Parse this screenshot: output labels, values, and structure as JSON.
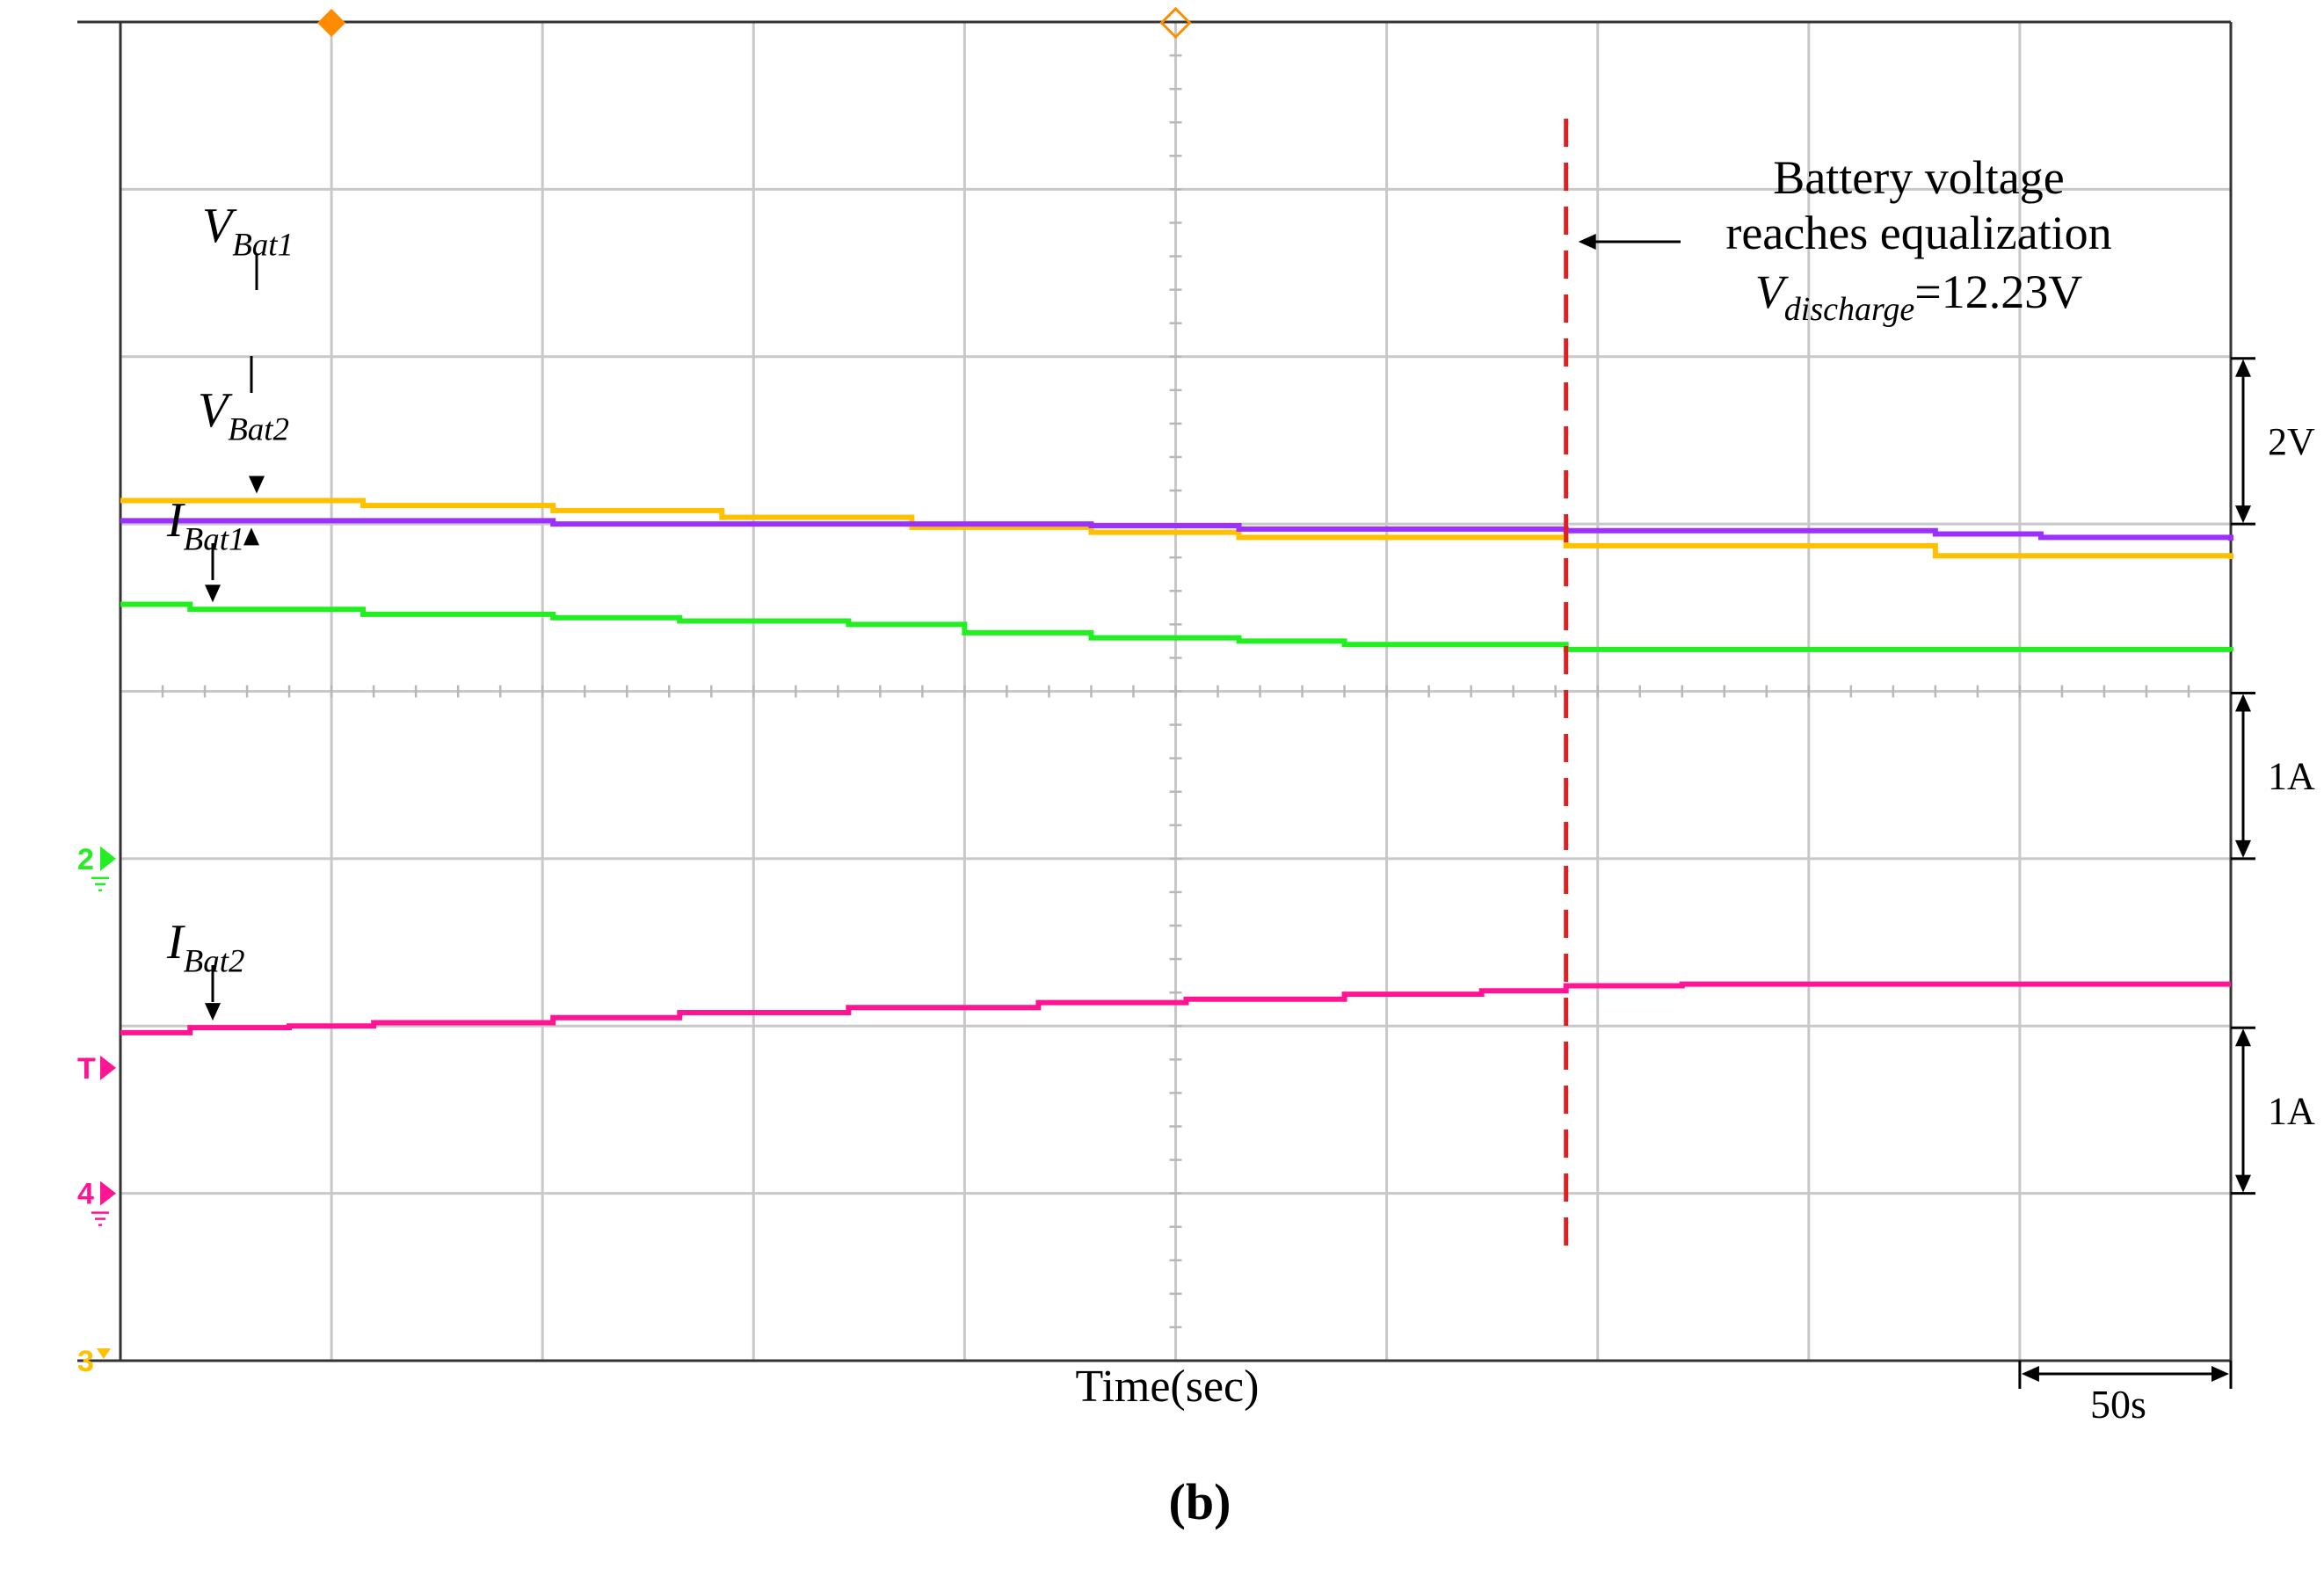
{
  "chart_data": {
    "type": "line",
    "xlabel": "Time(sec)",
    "grid": true,
    "panel_label": "(b)",
    "time_scale_label": "50s",
    "series": [
      {
        "name": "V",
        "sub": "Bat1",
        "color": "#FFC000",
        "steps": [
          [
            0.0,
            1.14
          ],
          [
            1.15,
            1.11
          ],
          [
            2.05,
            1.08
          ],
          [
            2.85,
            1.04
          ],
          [
            3.75,
            0.98
          ],
          [
            4.6,
            0.95
          ],
          [
            5.3,
            0.92
          ],
          [
            6.85,
            0.87
          ],
          [
            8.6,
            0.81
          ],
          [
            10.0,
            0.79
          ]
        ]
      },
      {
        "name": "V",
        "sub": "Bat2",
        "color": "#9B30FF",
        "steps": [
          [
            0.0,
            1.02
          ],
          [
            1.15,
            1.02
          ],
          [
            2.05,
            1.0
          ],
          [
            4.6,
            0.99
          ],
          [
            5.3,
            0.97
          ],
          [
            6.85,
            0.96
          ],
          [
            8.6,
            0.94
          ],
          [
            9.1,
            0.92
          ],
          [
            10.0,
            0.9
          ]
        ]
      },
      {
        "name": "I",
        "sub": "Bat1",
        "color": "#22EE22",
        "steps": [
          [
            0.0,
            0.52
          ],
          [
            0.33,
            0.49
          ],
          [
            0.8,
            0.49
          ],
          [
            1.15,
            0.46
          ],
          [
            2.05,
            0.44
          ],
          [
            2.65,
            0.42
          ],
          [
            3.45,
            0.4
          ],
          [
            4.0,
            0.35
          ],
          [
            4.6,
            0.32
          ],
          [
            5.3,
            0.3
          ],
          [
            5.8,
            0.28
          ],
          [
            6.45,
            0.28
          ],
          [
            6.85,
            0.25
          ],
          [
            10.0,
            0.24
          ]
        ]
      },
      {
        "name": "I",
        "sub": "Bat2",
        "color": "#FF1493",
        "steps": [
          [
            0.0,
            -2.04
          ],
          [
            0.33,
            -2.01
          ],
          [
            0.8,
            -2.0
          ],
          [
            1.2,
            -1.98
          ],
          [
            2.05,
            -1.95
          ],
          [
            2.65,
            -1.92
          ],
          [
            3.45,
            -1.89
          ],
          [
            4.35,
            -1.86
          ],
          [
            5.05,
            -1.84
          ],
          [
            5.8,
            -1.81
          ],
          [
            6.45,
            -1.79
          ],
          [
            6.85,
            -1.76
          ],
          [
            7.4,
            -1.75
          ],
          [
            10.0,
            -1.75
          ]
        ]
      }
    ],
    "equalization_time": 6.85,
    "annotation": {
      "line1": "Battery voltage",
      "line2": "reaches equalization",
      "value_main": "V",
      "value_sub": "discharge",
      "value_rest": "=12.23V"
    },
    "scale_bars": [
      {
        "label": "2V",
        "from_div": 6,
        "to_div": 5
      },
      {
        "label": "1A",
        "from_div": 4,
        "to_div": 3
      },
      {
        "label": "1A",
        "from_div": 2,
        "to_div": 1
      }
    ],
    "channel_markers": [
      {
        "label": "2",
        "color": "#22EE22",
        "div": 3
      },
      {
        "label": "T",
        "color": "#FF1493",
        "div": 1.75
      },
      {
        "label": "4",
        "color": "#FF1493",
        "div": 1
      },
      {
        "label": "3",
        "color": "#FFC000",
        "div": 0
      }
    ],
    "trigger_marks": [
      {
        "div": 1.0,
        "color": "#FF8C00",
        "filled": true
      },
      {
        "div": 5.0,
        "color": "#FF8C00",
        "filled": false
      }
    ]
  }
}
